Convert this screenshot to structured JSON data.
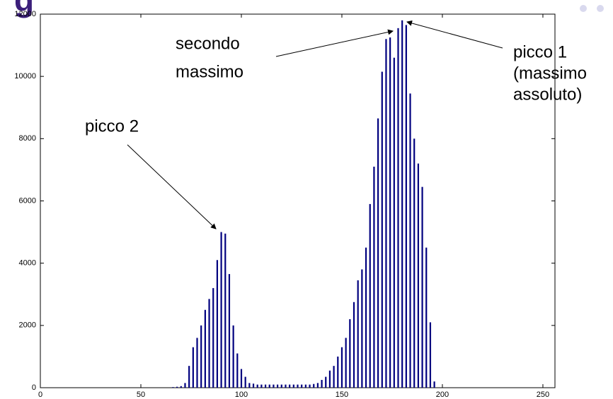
{
  "chart_data": {
    "type": "bar",
    "title": "g",
    "x": [
      66,
      68,
      70,
      72,
      74,
      76,
      78,
      80,
      82,
      84,
      86,
      88,
      90,
      92,
      94,
      96,
      98,
      100,
      102,
      104,
      106,
      108,
      110,
      112,
      114,
      116,
      118,
      120,
      122,
      124,
      126,
      128,
      130,
      132,
      134,
      136,
      138,
      140,
      142,
      144,
      146,
      148,
      150,
      152,
      154,
      156,
      158,
      160,
      162,
      164,
      166,
      168,
      170,
      172,
      174,
      176,
      178,
      180,
      182,
      184,
      186,
      188,
      190,
      192,
      194,
      196
    ],
    "values": [
      20,
      30,
      50,
      150,
      700,
      1300,
      1600,
      2000,
      2500,
      2850,
      3200,
      4100,
      5000,
      4950,
      3650,
      2000,
      1100,
      600,
      350,
      150,
      130,
      100,
      100,
      100,
      100,
      100,
      100,
      100,
      100,
      100,
      100,
      100,
      100,
      100,
      100,
      120,
      150,
      250,
      350,
      550,
      700,
      1000,
      1300,
      1600,
      2200,
      2750,
      3450,
      3800,
      4500,
      5900,
      7100,
      8650,
      10150,
      11200,
      11250,
      10600,
      11550,
      11800,
      11650,
      9450,
      8000,
      7200,
      6450,
      4500,
      2100,
      200
    ],
    "color": "#00007f",
    "xlim": [
      0,
      256
    ],
    "xticks": [
      0,
      50,
      100,
      150,
      200,
      250
    ],
    "ylim": [
      0,
      12000
    ],
    "yticks": [
      0,
      2000,
      4000,
      6000,
      8000,
      10000,
      12000
    ],
    "annotations": [
      {
        "lines": [
          "secondo",
          "massimo"
        ]
      },
      {
        "lines": [
          "picco 1",
          "(massimo",
          "assoluto)"
        ]
      },
      {
        "lines": [
          "picco 2"
        ]
      }
    ]
  }
}
